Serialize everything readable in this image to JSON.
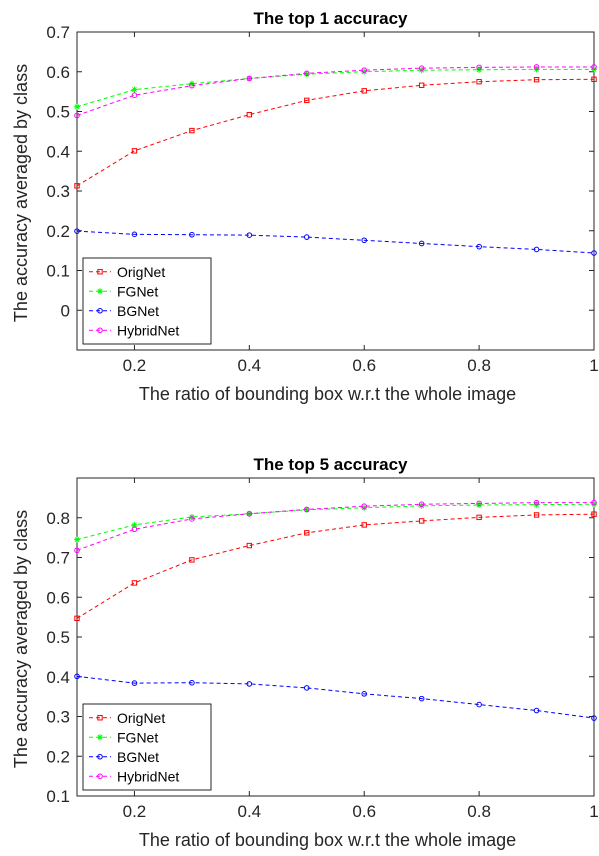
{
  "chart_data": [
    {
      "type": "line",
      "title": "The top 1 accuracy",
      "xlabel": "The ratio of bounding box w.r.t the whole image",
      "ylabel": "The accuracy averaged by class",
      "xlim": [
        0.1,
        1.0
      ],
      "ylim": [
        -0.1,
        0.7
      ],
      "xticks": [
        0.2,
        0.4,
        0.6,
        0.8,
        1.0
      ],
      "xtick_labels": [
        "0.2",
        "0.4",
        "0.6",
        "0.8",
        "1"
      ],
      "yticks": [
        0,
        0.1,
        0.2,
        0.3,
        0.4,
        0.5,
        0.6,
        0.7
      ],
      "ytick_labels": [
        "0",
        "0.1",
        "0.2",
        "0.3",
        "0.4",
        "0.5",
        "0.6",
        "0.7"
      ],
      "legend": "bottom-left",
      "grid": false,
      "x": [
        0.1,
        0.2,
        0.3,
        0.4,
        0.5,
        0.6,
        0.7,
        0.8,
        0.9,
        1.0
      ],
      "series": [
        {
          "name": "OrigNet",
          "color": "#ff0000",
          "marker": "square",
          "values": [
            0.313,
            0.401,
            0.452,
            0.492,
            0.528,
            0.552,
            0.566,
            0.575,
            0.58,
            0.581
          ]
        },
        {
          "name": "FGNet",
          "color": "#00ff00",
          "marker": "asterisk",
          "values": [
            0.512,
            0.555,
            0.57,
            0.583,
            0.594,
            0.6,
            0.604,
            0.605,
            0.606,
            0.606
          ]
        },
        {
          "name": "BGNet",
          "color": "#0000ff",
          "marker": "circle",
          "values": [
            0.199,
            0.191,
            0.19,
            0.189,
            0.184,
            0.176,
            0.168,
            0.16,
            0.153,
            0.144
          ]
        },
        {
          "name": "HybridNet",
          "color": "#ff00ff",
          "marker": "circle",
          "values": [
            0.49,
            0.541,
            0.565,
            0.583,
            0.596,
            0.604,
            0.609,
            0.611,
            0.612,
            0.612
          ]
        }
      ]
    },
    {
      "type": "line",
      "title": "The top 5 accuracy",
      "xlabel": "The ratio of bounding box w.r.t the whole image",
      "ylabel": "The accuracy averaged by class",
      "xlim": [
        0.1,
        1.0
      ],
      "ylim": [
        0.1,
        0.9
      ],
      "xticks": [
        0.2,
        0.4,
        0.6,
        0.8,
        1.0
      ],
      "xtick_labels": [
        "0.2",
        "0.4",
        "0.6",
        "0.8",
        "1"
      ],
      "yticks": [
        0.1,
        0.2,
        0.3,
        0.4,
        0.5,
        0.6,
        0.7,
        0.8
      ],
      "ytick_labels": [
        "0.1",
        "0.2",
        "0.3",
        "0.4",
        "0.5",
        "0.6",
        "0.7",
        "0.8"
      ],
      "legend": "bottom-left",
      "grid": false,
      "x": [
        0.1,
        0.2,
        0.3,
        0.4,
        0.5,
        0.6,
        0.7,
        0.8,
        0.9,
        1.0
      ],
      "series": [
        {
          "name": "OrigNet",
          "color": "#ff0000",
          "marker": "square",
          "values": [
            0.547,
            0.636,
            0.694,
            0.73,
            0.762,
            0.782,
            0.792,
            0.801,
            0.807,
            0.809
          ]
        },
        {
          "name": "FGNet",
          "color": "#00ff00",
          "marker": "asterisk",
          "values": [
            0.745,
            0.782,
            0.802,
            0.81,
            0.82,
            0.825,
            0.83,
            0.832,
            0.833,
            0.834
          ]
        },
        {
          "name": "BGNet",
          "color": "#0000ff",
          "marker": "circle",
          "values": [
            0.401,
            0.384,
            0.385,
            0.382,
            0.372,
            0.357,
            0.345,
            0.33,
            0.315,
            0.296
          ]
        },
        {
          "name": "HybridNet",
          "color": "#ff00ff",
          "marker": "circle",
          "values": [
            0.718,
            0.771,
            0.797,
            0.81,
            0.821,
            0.829,
            0.834,
            0.836,
            0.838,
            0.838
          ]
        }
      ]
    }
  ]
}
